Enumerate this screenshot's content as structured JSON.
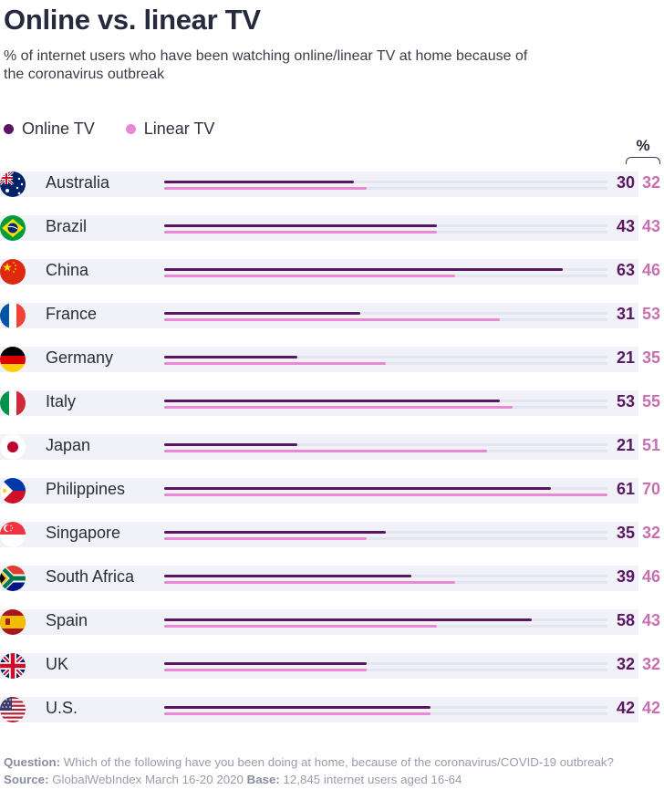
{
  "title": "Online vs. linear TV",
  "subtitle": "% of internet users who have been watching online/linear TV at home because of the coronavirus outbreak",
  "legend": [
    {
      "label": "Online TV",
      "color": "#5b1565"
    },
    {
      "label": "Linear TV",
      "color": "#e78ad3"
    }
  ],
  "percent_header": "%",
  "chart_data": {
    "type": "bar",
    "title": "Online vs. linear TV",
    "xlim": [
      0,
      70
    ],
    "categories": [
      "Australia",
      "Brazil",
      "China",
      "France",
      "Germany",
      "Italy",
      "Japan",
      "Philippines",
      "Singapore",
      "South Africa",
      "Spain",
      "UK",
      "U.S."
    ],
    "series": [
      {
        "name": "Online TV",
        "color": "#5b1565",
        "values": [
          30,
          43,
          63,
          31,
          21,
          53,
          21,
          61,
          35,
          39,
          58,
          32,
          42
        ]
      },
      {
        "name": "Linear TV",
        "color": "#e78ad3",
        "values": [
          32,
          43,
          46,
          53,
          35,
          55,
          51,
          70,
          32,
          46,
          43,
          32,
          42
        ]
      }
    ],
    "flag_icons": [
      "australia-flag-icon",
      "brazil-flag-icon",
      "china-flag-icon",
      "france-flag-icon",
      "germany-flag-icon",
      "italy-flag-icon",
      "japan-flag-icon",
      "philippines-flag-icon",
      "singapore-flag-icon",
      "south-africa-flag-icon",
      "spain-flag-icon",
      "uk-flag-icon",
      "us-flag-icon"
    ]
  },
  "footer": {
    "question_label": "Question:",
    "question_text": "Which of the following have you been doing at home, because of the coronavirus/COVID-19 outbreak?",
    "source_label": "Source:",
    "source_text": "GlobalWebIndex March 16-20 2020",
    "base_label": "Base:",
    "base_text": "12,845 internet users aged 16-64"
  }
}
